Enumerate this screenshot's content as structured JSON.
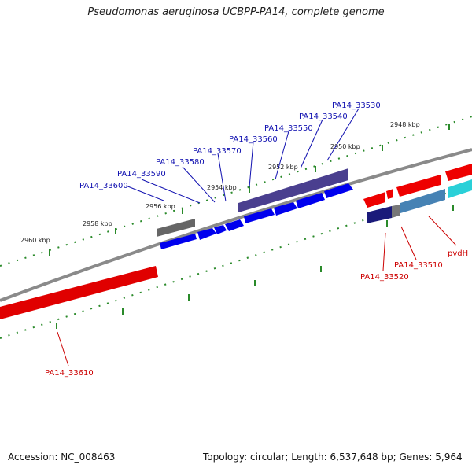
{
  "title": "Pseudomonas aeruginosa UCBPP-PA14, complete genome",
  "footer": {
    "accession": "Accession: NC_008463",
    "summary": "Topology: circular; Length: 6,537,648 bp; Genes: 5,964"
  },
  "ruler_labels": [
    "2960 kbp",
    "2958 kbp",
    "2956 kbp",
    "2954 kbp",
    "2952 kbp",
    "2950 kbp",
    "2948 kbp"
  ],
  "gene_labels_forward": [
    "PA14_33600",
    "PA14_33590",
    "PA14_33580",
    "PA14_33570",
    "PA14_33560",
    "PA14_33550",
    "PA14_33540",
    "PA14_33530"
  ],
  "gene_labels_reverse": [
    "PA14_33520",
    "PA14_33510",
    "pvdH",
    "PA14_33610"
  ],
  "colors": {
    "forward_label": "#1010b0",
    "reverse_label": "#cc0000",
    "cds_blue": "#0000ee",
    "gene_purple": "#4a3f8f",
    "cds_red": "#ee0000",
    "backbone": "#888888",
    "ticks": "#2a8a2a"
  }
}
